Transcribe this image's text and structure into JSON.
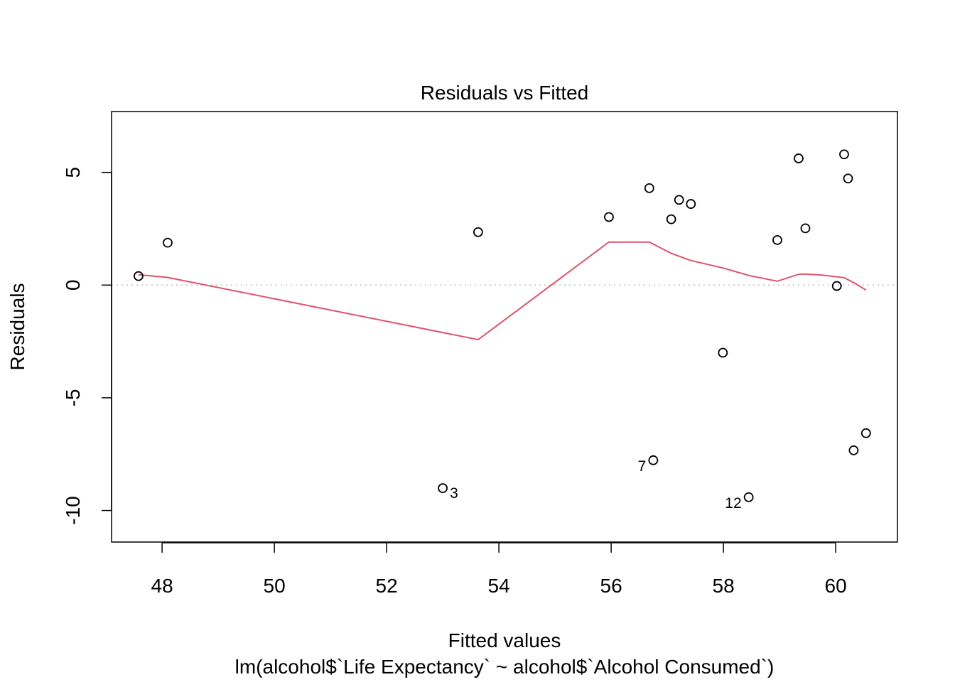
{
  "chart_data": {
    "type": "scatter",
    "title": "Residuals vs Fitted",
    "xlabel": "Fitted values",
    "subtitle": "lm(alcohol$`Life Expectancy` ~ alcohol$`Alcohol Consumed`)",
    "ylabel": "Residuals",
    "xlim": [
      47.1,
      61.1
    ],
    "ylim": [
      -11.4,
      7.7
    ],
    "x_ticks": [
      48,
      50,
      52,
      54,
      56,
      58,
      60
    ],
    "x_tick_labels": [
      "48",
      "50",
      "52",
      "54",
      "56",
      "58",
      "60"
    ],
    "y_ticks": [
      -10,
      -5,
      0,
      5
    ],
    "y_tick_labels": [
      "-10",
      "-5",
      "0",
      "5"
    ],
    "reference_line": {
      "y": 0,
      "style": "dotted",
      "color": "#bebebe"
    },
    "points": [
      {
        "x": 47.58,
        "y": 0.4,
        "label": ""
      },
      {
        "x": 48.1,
        "y": 1.88,
        "label": ""
      },
      {
        "x": 53.0,
        "y": -9.01,
        "label": "3"
      },
      {
        "x": 53.63,
        "y": 2.35,
        "label": ""
      },
      {
        "x": 55.96,
        "y": 3.02,
        "label": ""
      },
      {
        "x": 56.68,
        "y": 4.3,
        "label": ""
      },
      {
        "x": 56.75,
        "y": -7.77,
        "label": "7"
      },
      {
        "x": 57.07,
        "y": 2.92,
        "label": ""
      },
      {
        "x": 57.21,
        "y": 3.78,
        "label": ""
      },
      {
        "x": 57.42,
        "y": 3.6,
        "label": ""
      },
      {
        "x": 57.99,
        "y": -3.0,
        "label": ""
      },
      {
        "x": 58.45,
        "y": -9.41,
        "label": "12"
      },
      {
        "x": 58.96,
        "y": 2.0,
        "label": ""
      },
      {
        "x": 59.34,
        "y": 5.62,
        "label": ""
      },
      {
        "x": 59.46,
        "y": 2.52,
        "label": ""
      },
      {
        "x": 60.02,
        "y": -0.04,
        "label": ""
      },
      {
        "x": 60.15,
        "y": 5.8,
        "label": ""
      },
      {
        "x": 60.22,
        "y": 4.73,
        "label": ""
      },
      {
        "x": 60.32,
        "y": -7.33,
        "label": ""
      },
      {
        "x": 60.54,
        "y": -6.57,
        "label": ""
      }
    ],
    "smooth_line": {
      "color": "#df536b",
      "x": [
        47.58,
        48.1,
        53.63,
        55.96,
        56.68,
        57.07,
        57.42,
        57.99,
        58.45,
        58.96,
        59.34,
        59.46,
        59.76,
        60.15,
        60.32,
        60.54
      ],
      "y": [
        0.46,
        0.34,
        -2.42,
        1.91,
        1.91,
        1.41,
        1.09,
        0.76,
        0.43,
        0.17,
        0.48,
        0.49,
        0.44,
        0.33,
        0.11,
        -0.22
      ]
    }
  }
}
